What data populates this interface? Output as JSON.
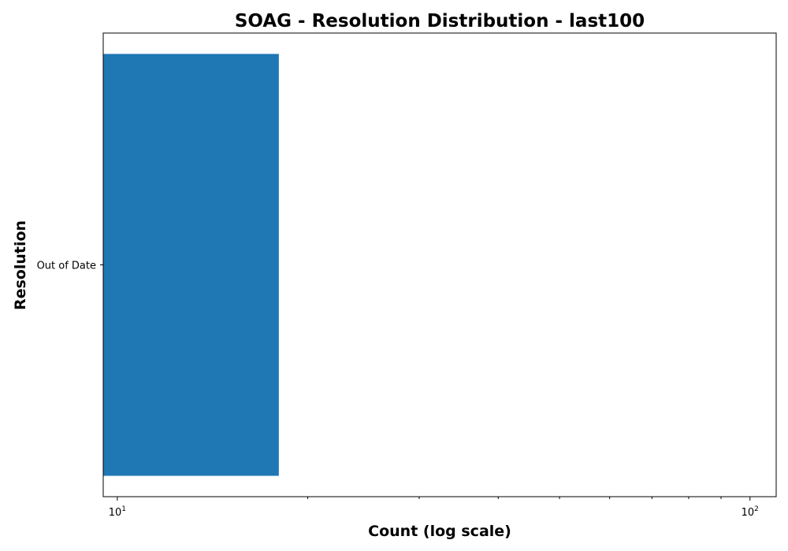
{
  "chart_data": {
    "type": "bar",
    "orientation": "horizontal",
    "title": "SOAG - Resolution Distribution - last100",
    "xlabel": "Count (log scale)",
    "ylabel": "Resolution",
    "categories": [
      "Out of Date"
    ],
    "values": [
      18
    ],
    "x_scale": "log",
    "xlim": [
      9.5,
      110
    ],
    "x_ticks": [
      {
        "value": 10,
        "base": "10",
        "exp": "1"
      },
      {
        "value": 100,
        "base": "10",
        "exp": "2"
      }
    ],
    "grid": false,
    "legend": "none",
    "bar_color": "#1f77b4"
  }
}
